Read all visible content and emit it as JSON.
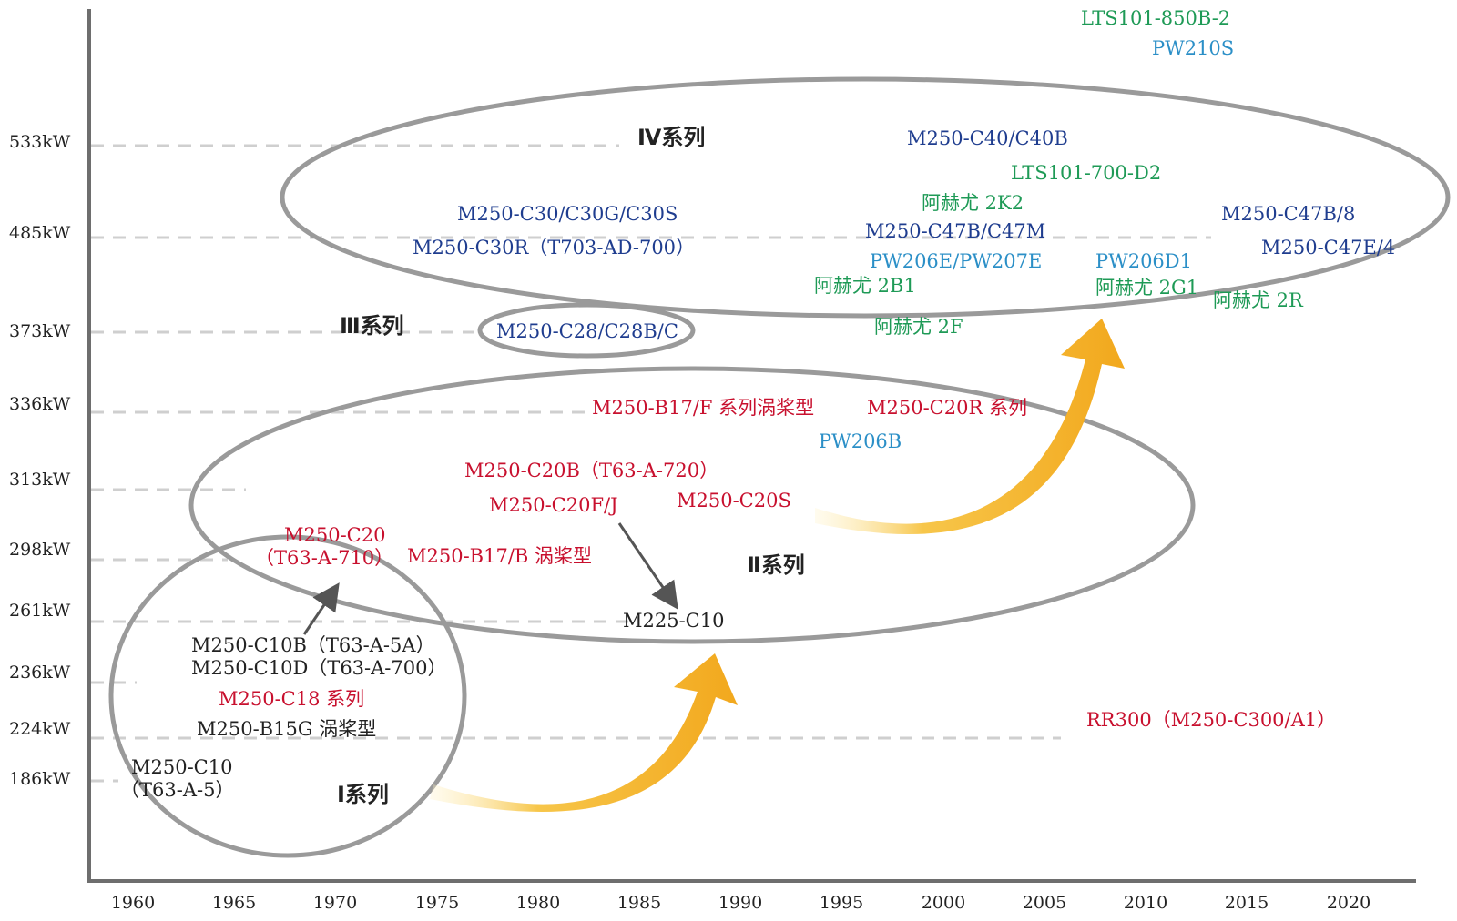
{
  "colors": {
    "black": "#222222",
    "red": "#c8102e",
    "navy": "#1f3d8f",
    "blue": "#2b8fc7",
    "green": "#1e9a56",
    "grid": "#cfcfcf",
    "axis": "#6e6e6e",
    "ellipse": "#9a9a9a",
    "arrow": "#f2a81d"
  },
  "axis": {
    "x_ticks": [
      "1960",
      "1965",
      "1970",
      "1975",
      "1980",
      "1985",
      "1990",
      "1995",
      "2000",
      "2005",
      "2010",
      "2015",
      "2020"
    ],
    "y_ticks": [
      "533kW",
      "485kW",
      "373kW",
      "336kW",
      "313kW",
      "298kW",
      "261kW",
      "236kW",
      "224kW",
      "186kW"
    ]
  },
  "series_labels": {
    "series1": "Ⅰ系列",
    "series2": "Ⅱ系列",
    "series3": "Ⅲ系列",
    "series4": "Ⅳ系列"
  },
  "models": {
    "lts101_850b2": "LTS101-850B-2",
    "pw210s": "PW210S",
    "m250_c40": "M250-C40/C40B",
    "lts101_700d2": "LTS101-700-D2",
    "arriel_2k2": "阿赫尤 2K2",
    "m250_c30": "M250-C30/C30G/C30S",
    "m250_c30r": "M250-C30R（T703-AD-700）",
    "m250_c47b_c47m": "M250-C47B/C47M",
    "m250_c47b8": "M250-C47B/8",
    "pw206e": "PW206E/PW207E",
    "pw206d1": "PW206D1",
    "m250_c47e4": "M250-C47E/4",
    "arriel_2b1": "阿赫尤 2B1",
    "arriel_2g1": "阿赫尤 2G1",
    "arriel_2r": "阿赫尤 2R",
    "arriel_2f": "阿赫尤 2F",
    "m250_c28": "M250-C28/C28B/C",
    "m250_b17f": "M250-B17/F 系列涡桨型",
    "m250_c20r": "M250-C20R 系列",
    "pw206b": "PW206B",
    "m250_c20b": "M250-C20B（T63-A-720）",
    "m250_c20fj": "M250-C20F/J",
    "m250_c20s": "M250-C20S",
    "m250_c20_line1": "M250-C20",
    "m250_c20_line2": "（T63-A-710）",
    "m250_b17b": "M250-B17/B 涡桨型",
    "m225_c10": "M225-C10",
    "m250_c10b": "M250-C10B（T63-A-5A）",
    "m250_c10d": "M250-C10D（T63-A-700）",
    "m250_c18": "M250-C18 系列",
    "m250_b15g": "M250-B15G 涡桨型",
    "m250_c10_line1": "M250-C10",
    "m250_c10_line2": "（T63-A-5）",
    "rr300": "RR300（M250-C300/A1）"
  }
}
